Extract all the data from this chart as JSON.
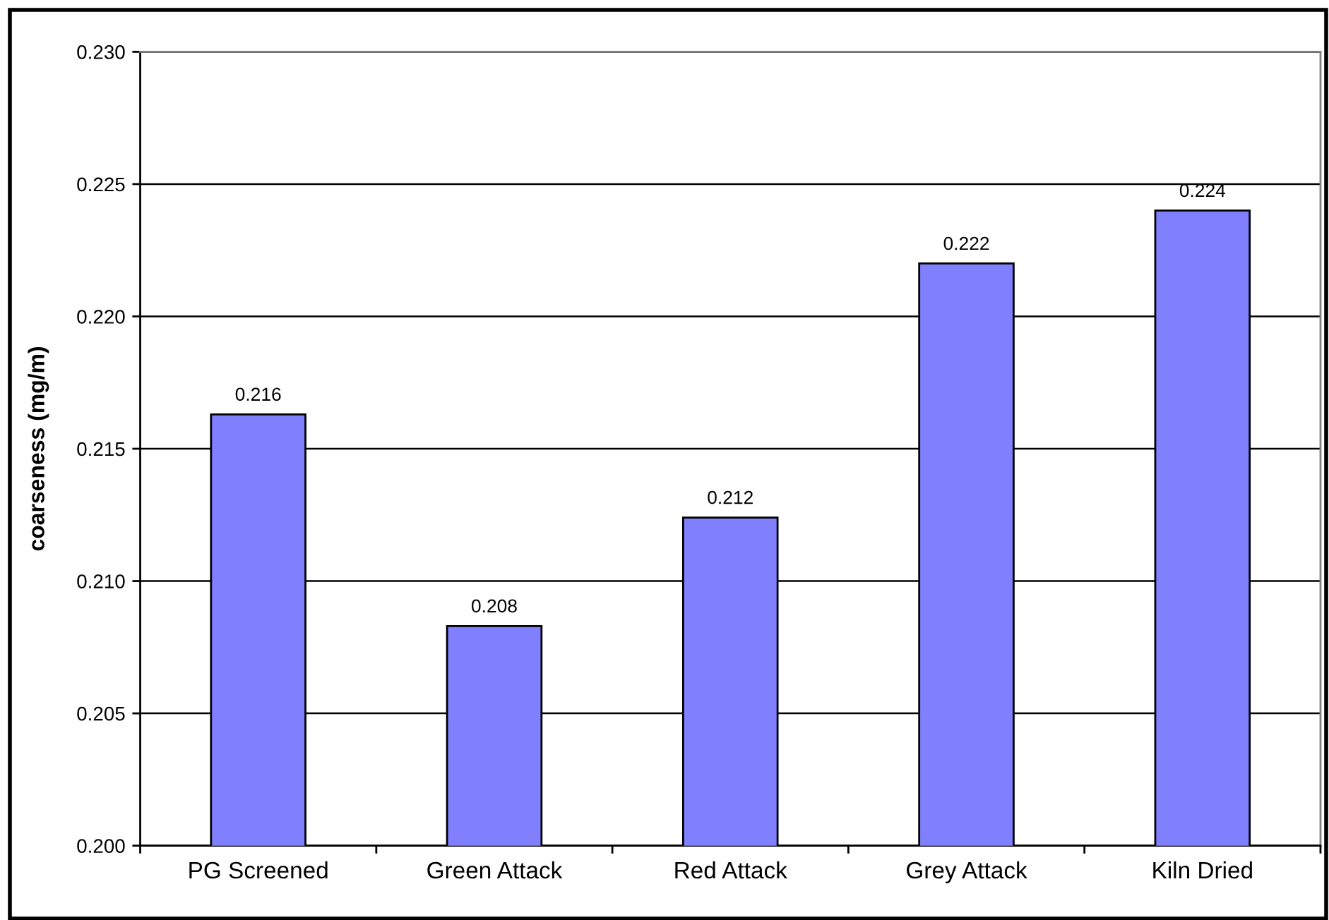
{
  "chart_data": {
    "type": "bar",
    "ylabel": "coarseness (mg/m)",
    "categories": [
      "PG Screened",
      "Green Attack",
      "Red Attack",
      "Grey Attack",
      "Kiln Dried"
    ],
    "values": [
      0.2163,
      0.2083,
      0.2124,
      0.222,
      0.224
    ],
    "value_labels": [
      "0.216",
      "0.208",
      "0.212",
      "0.222",
      "0.224"
    ],
    "color": "#8080ff",
    "ylim": [
      0.2,
      0.23
    ],
    "yticks": [
      {
        "value": 0.2,
        "label": "0.200"
      },
      {
        "value": 0.205,
        "label": "0.205"
      },
      {
        "value": 0.21,
        "label": "0.210"
      },
      {
        "value": 0.215,
        "label": "0.215"
      },
      {
        "value": 0.22,
        "label": "0.220"
      },
      {
        "value": 0.225,
        "label": "0.225"
      },
      {
        "value": 0.23,
        "label": "0.230"
      }
    ],
    "grid": "y"
  }
}
